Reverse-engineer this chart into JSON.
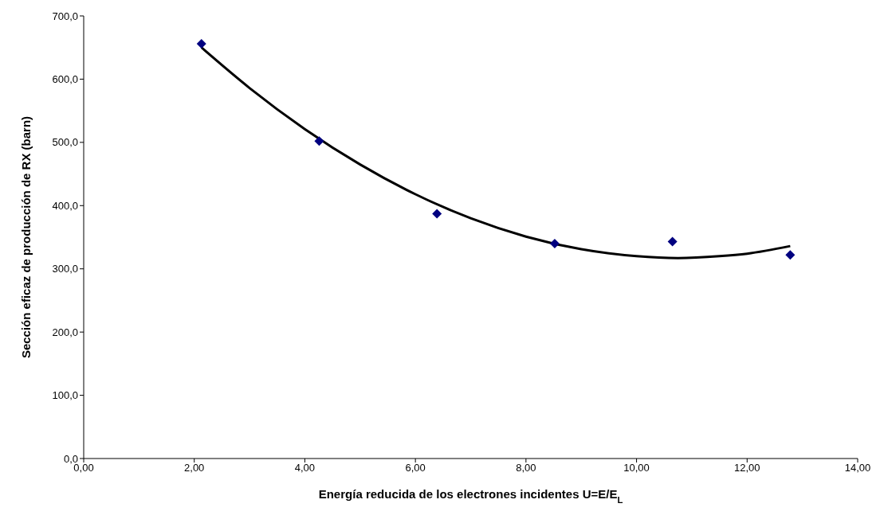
{
  "chart_data": {
    "type": "scatter",
    "xlabel": "Energía reducida de los electrones incidentes U=E/E$_{L}$",
    "ylabel": "Sección eficaz de producción de RX (barn)",
    "marker": "diamond",
    "xlim": [
      0,
      14
    ],
    "xticks": [
      {
        "value": 0,
        "label": "0,00"
      },
      {
        "value": 2,
        "label": "2,00"
      },
      {
        "value": 4,
        "label": "4,00"
      },
      {
        "value": 6,
        "label": "6,00"
      },
      {
        "value": 8,
        "label": "8,00"
      },
      {
        "value": 10,
        "label": "10,00"
      },
      {
        "value": 12,
        "label": "12,00"
      },
      {
        "value": 14,
        "label": "14,00"
      }
    ],
    "ylim": [
      0,
      700
    ],
    "yticks": [
      {
        "value": 0,
        "label": "0,0"
      },
      {
        "value": 100,
        "label": "100,0"
      },
      {
        "value": 200,
        "label": "200,0"
      },
      {
        "value": 300,
        "label": "300,0"
      },
      {
        "value": 400,
        "label": "400,0"
      },
      {
        "value": 500,
        "label": "500,0"
      },
      {
        "value": 600,
        "label": "600,0"
      },
      {
        "value": 700,
        "label": "700,0"
      }
    ],
    "series": [
      {
        "color": "#000080",
        "x": [
          2.13,
          4.26,
          6.39,
          8.52,
          10.65,
          12.78
        ],
        "values": [
          656,
          502,
          387,
          340,
          343,
          322
        ]
      },
      {
        "type": "line",
        "color": "#000000",
        "marker": "none",
        "x": [
          2.13,
          3,
          4,
          5,
          6,
          7,
          8,
          9,
          10,
          10.75,
          11.5,
          12,
          12.78
        ],
        "values": [
          650,
          586,
          521,
          465,
          418,
          380,
          351,
          331,
          320,
          317,
          320,
          324,
          336
        ]
      }
    ]
  }
}
